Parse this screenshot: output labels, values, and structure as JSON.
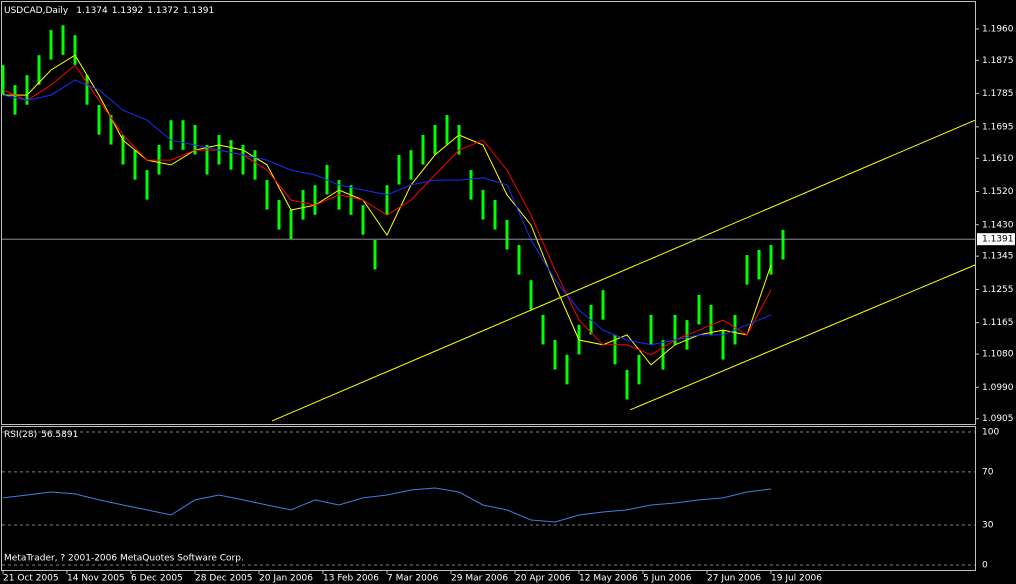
{
  "chart_data": {
    "type": "ohlc-bars",
    "title": "USDCAD,Daily",
    "header_values": [
      1.1374,
      1.1392,
      1.1372,
      1.1391
    ],
    "last_price": 1.1391,
    "xlim": [
      -0.75,
      243
    ],
    "xticks": [
      {
        "value": 0,
        "label": "21 Oct 2005"
      },
      {
        "value": 16,
        "label": "14 Nov 2005"
      },
      {
        "value": 32,
        "label": "6 Dec 2005"
      },
      {
        "value": 48,
        "label": "28 Dec 2005"
      },
      {
        "value": 64,
        "label": "20 Jan 2006"
      },
      {
        "value": 80,
        "label": "13 Feb 2006"
      },
      {
        "value": 96,
        "label": "7 Mar 2006"
      },
      {
        "value": 112,
        "label": "29 Mar 2006"
      },
      {
        "value": 128,
        "label": "20 Apr 2006"
      },
      {
        "value": 144,
        "label": "12 May 2006"
      },
      {
        "value": 160,
        "label": "5 Jun 2006"
      },
      {
        "value": 176,
        "label": "27 Jun 2006"
      },
      {
        "value": 192,
        "label": "19 Jul 2006"
      }
    ],
    "ylim": [
      1.0888,
      1.2033
    ],
    "yticks": [
      {
        "value": 1.196,
        "label": "1.1960"
      },
      1.1875,
      1.1785,
      1.1695,
      {
        "value": 1.161,
        "label": "1.1610"
      },
      {
        "value": 1.152,
        "label": "1.1520"
      },
      {
        "value": 1.143,
        "label": "1.1430"
      },
      1.1345,
      1.1255,
      1.1165,
      {
        "value": 1.108,
        "label": "1.1080"
      },
      {
        "value": 1.099,
        "label": "1.0990"
      },
      1.0905
    ],
    "bars": {
      "color": "#00ff00",
      "x": [
        0,
        3,
        6,
        9,
        12,
        15,
        18,
        21,
        24,
        27,
        30,
        33,
        36,
        39,
        42,
        45,
        48,
        51,
        54,
        57,
        60,
        63,
        66,
        69,
        72,
        75,
        78,
        81,
        84,
        87,
        90,
        93,
        96,
        99,
        102,
        105,
        108,
        111,
        114,
        117,
        120,
        123,
        126,
        129,
        132,
        135,
        138,
        141,
        144,
        147,
        150,
        153,
        156,
        159,
        162,
        165,
        168,
        171,
        174,
        177,
        180,
        183,
        186,
        189,
        192,
        195
      ],
      "high": [
        1.1862,
        1.1808,
        1.1835,
        1.1889,
        1.1957,
        1.197,
        1.1943,
        1.1835,
        1.1754,
        1.1727,
        1.1673,
        1.1632,
        1.1578,
        1.1646,
        1.1713,
        1.1713,
        1.17,
        1.1646,
        1.1673,
        1.1659,
        1.1646,
        1.1632,
        1.1551,
        1.1497,
        1.147,
        1.1524,
        1.1537,
        1.1592,
        1.1551,
        1.1537,
        1.1483,
        1.1389,
        1.1537,
        1.1619,
        1.1632,
        1.1673,
        1.17,
        1.1727,
        1.17,
        1.1578,
        1.1524,
        1.1497,
        1.1443,
        1.1375,
        1.128,
        1.1186,
        1.1118,
        1.1078,
        1.1159,
        1.1213,
        1.1253,
        1.1132,
        1.1037,
        1.1078,
        1.1186,
        1.1118,
        1.1186,
        1.1172,
        1.124,
        1.1213,
        1.1145,
        1.1186,
        1.1348,
        1.1362,
        1.1375,
        1.1416
      ],
      "low": [
        1.1782,
        1.1728,
        1.1755,
        1.1809,
        1.1877,
        1.189,
        1.1863,
        1.1755,
        1.1674,
        1.1647,
        1.1593,
        1.1552,
        1.1498,
        1.1566,
        1.1633,
        1.1633,
        1.162,
        1.1566,
        1.1593,
        1.1579,
        1.1566,
        1.1552,
        1.1471,
        1.1417,
        1.139,
        1.1444,
        1.1457,
        1.1512,
        1.1471,
        1.1457,
        1.1403,
        1.1309,
        1.1457,
        1.1539,
        1.1552,
        1.1593,
        1.162,
        1.1647,
        1.162,
        1.1498,
        1.1444,
        1.1417,
        1.1363,
        1.1295,
        1.12,
        1.1106,
        1.1038,
        1.0998,
        1.1079,
        1.1133,
        1.1173,
        1.1052,
        1.0957,
        1.0998,
        1.1106,
        1.1038,
        1.1106,
        1.1092,
        1.116,
        1.1133,
        1.1065,
        1.1106,
        1.1268,
        1.1282,
        1.1295,
        1.1336
      ]
    },
    "ma_x": [
      0,
      6,
      12,
      18,
      24,
      30,
      36,
      42,
      48,
      54,
      60,
      66,
      72,
      78,
      84,
      90,
      96,
      102,
      108,
      114,
      120,
      126,
      132,
      138,
      144,
      150,
      156,
      162,
      168,
      174,
      180,
      186,
      192
    ],
    "series": [
      {
        "color": "#ffff00",
        "values": [
          1.1781,
          1.1781,
          1.1849,
          1.1889,
          1.1781,
          1.1659,
          1.1605,
          1.1592,
          1.1632,
          1.1646,
          1.1632,
          1.1592,
          1.147,
          1.1483,
          1.1524,
          1.1497,
          1.1402,
          1.1538,
          1.1619,
          1.1673,
          1.1646,
          1.1511,
          1.1429,
          1.1267,
          1.1118,
          1.1105,
          1.1132,
          1.1051,
          1.1105,
          1.1132,
          1.1145,
          1.1132,
          1.1321
        ]
      },
      {
        "color": "#ff0000",
        "values": [
          1.1795,
          1.1767,
          1.1808,
          1.1862,
          1.1767,
          1.1673,
          1.1605,
          1.1605,
          1.1632,
          1.1632,
          1.1619,
          1.1578,
          1.1497,
          1.1483,
          1.1511,
          1.1497,
          1.1456,
          1.1497,
          1.1565,
          1.1632,
          1.1659,
          1.1578,
          1.1456,
          1.1308,
          1.1172,
          1.1105,
          1.1105,
          1.1078,
          1.1118,
          1.1145,
          1.1172,
          1.1132,
          1.1254
        ]
      },
      {
        "color": "#1a2cff",
        "values": [
          1.1781,
          1.1767,
          1.1781,
          1.1822,
          1.1795,
          1.174,
          1.1713,
          1.1659,
          1.1646,
          1.1632,
          1.1619,
          1.1605,
          1.1578,
          1.1565,
          1.1538,
          1.1524,
          1.1511,
          1.1538,
          1.1551,
          1.1551,
          1.1557,
          1.1538,
          1.1389,
          1.1281,
          1.1199,
          1.1145,
          1.1118,
          1.1105,
          1.1118,
          1.1132,
          1.1132,
          1.1159,
          1.1186
        ]
      }
    ],
    "trend_lines": [
      {
        "color": "#ffff00",
        "x": [
          67.25,
          243
        ],
        "values": [
          1.0899,
          1.1713
        ]
      },
      {
        "color": "#ffff00",
        "x": [
          156.75,
          243
        ],
        "values": [
          1.0929,
          1.1321
        ]
      }
    ],
    "indicator": {
      "type": "line",
      "label": "RSI(28)",
      "value": 56.5891,
      "color": "#3f7fe0",
      "ylim": [
        -3.8,
        104.5
      ],
      "yticks": [
        100,
        70,
        30,
        0
      ],
      "values": [
        50.4,
        52.6,
        54.9,
        53.4,
        48.9,
        45.1,
        41.4,
        37.6,
        48.9,
        52.6,
        48.9,
        45.1,
        41.4,
        48.9,
        45.1,
        50.4,
        52.6,
        56.4,
        57.9,
        54.9,
        45.1,
        41.4,
        33.8,
        32.3,
        37.6,
        39.8,
        41.4,
        45.1,
        46.6,
        48.9,
        50.4,
        54.9,
        57.1
      ]
    },
    "footer": "MetaTrader, ? 2001-2006 MetaQuotes Software Corp."
  }
}
